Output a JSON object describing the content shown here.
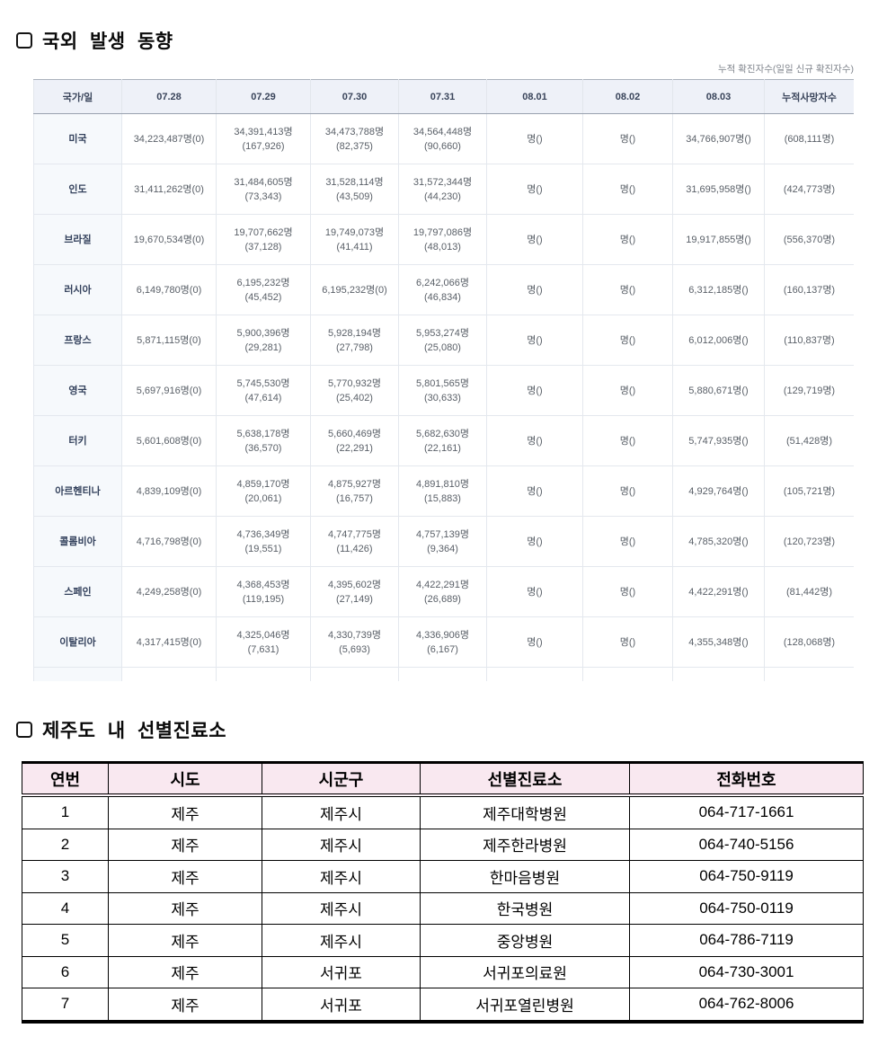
{
  "section1": {
    "title": "국외 발생 동향",
    "note": "누적 확진자수(일일 신규 확진자수)",
    "table": {
      "headers": [
        "국가/일",
        "07.28",
        "07.29",
        "07.30",
        "07.31",
        "08.01",
        "08.02",
        "08.03",
        "누적사망자수"
      ],
      "rows": [
        {
          "country": "미국",
          "cells": [
            [
              "34,223,487명(0)"
            ],
            [
              "34,391,413명",
              "(167,926)"
            ],
            [
              "34,473,788명",
              "(82,375)"
            ],
            [
              "34,564,448명",
              "(90,660)"
            ],
            [
              "명()"
            ],
            [
              "명()"
            ],
            [
              "34,766,907명()"
            ],
            [
              "(608,111명)"
            ]
          ]
        },
        {
          "country": "인도",
          "cells": [
            [
              "31,411,262명(0)"
            ],
            [
              "31,484,605명",
              "(73,343)"
            ],
            [
              "31,528,114명",
              "(43,509)"
            ],
            [
              "31,572,344명",
              "(44,230)"
            ],
            [
              "명()"
            ],
            [
              "명()"
            ],
            [
              "31,695,958명()"
            ],
            [
              "(424,773명)"
            ]
          ]
        },
        {
          "country": "브라질",
          "cells": [
            [
              "19,670,534명(0)"
            ],
            [
              "19,707,662명",
              "(37,128)"
            ],
            [
              "19,749,073명",
              "(41,411)"
            ],
            [
              "19,797,086명",
              "(48,013)"
            ],
            [
              "명()"
            ],
            [
              "명()"
            ],
            [
              "19,917,855명()"
            ],
            [
              "(556,370명)"
            ]
          ]
        },
        {
          "country": "러시아",
          "cells": [
            [
              "6,149,780명(0)"
            ],
            [
              "6,195,232명",
              "(45,452)"
            ],
            [
              "6,195,232명(0)"
            ],
            [
              "6,242,066명",
              "(46,834)"
            ],
            [
              "명()"
            ],
            [
              "명()"
            ],
            [
              "6,312,185명()"
            ],
            [
              "(160,137명)"
            ]
          ]
        },
        {
          "country": "프랑스",
          "cells": [
            [
              "5,871,115명(0)"
            ],
            [
              "5,900,396명",
              "(29,281)"
            ],
            [
              "5,928,194명",
              "(27,798)"
            ],
            [
              "5,953,274명",
              "(25,080)"
            ],
            [
              "명()"
            ],
            [
              "명()"
            ],
            [
              "6,012,006명()"
            ],
            [
              "(110,837명)"
            ]
          ]
        },
        {
          "country": "영국",
          "cells": [
            [
              "5,697,916명(0)"
            ],
            [
              "5,745,530명",
              "(47,614)"
            ],
            [
              "5,770,932명",
              "(25,402)"
            ],
            [
              "5,801,565명",
              "(30,633)"
            ],
            [
              "명()"
            ],
            [
              "명()"
            ],
            [
              "5,880,671명()"
            ],
            [
              "(129,719명)"
            ]
          ]
        },
        {
          "country": "터키",
          "cells": [
            [
              "5,601,608명(0)"
            ],
            [
              "5,638,178명",
              "(36,570)"
            ],
            [
              "5,660,469명",
              "(22,291)"
            ],
            [
              "5,682,630명",
              "(22,161)"
            ],
            [
              "명()"
            ],
            [
              "명()"
            ],
            [
              "5,747,935명()"
            ],
            [
              "(51,428명)"
            ]
          ]
        },
        {
          "country": "아르헨티나",
          "cells": [
            [
              "4,839,109명(0)"
            ],
            [
              "4,859,170명",
              "(20,061)"
            ],
            [
              "4,875,927명",
              "(16,757)"
            ],
            [
              "4,891,810명",
              "(15,883)"
            ],
            [
              "명()"
            ],
            [
              "명()"
            ],
            [
              "4,929,764명()"
            ],
            [
              "(105,721명)"
            ]
          ]
        },
        {
          "country": "콜롬비아",
          "cells": [
            [
              "4,716,798명(0)"
            ],
            [
              "4,736,349명",
              "(19,551)"
            ],
            [
              "4,747,775명",
              "(11,426)"
            ],
            [
              "4,757,139명",
              "(9,364)"
            ],
            [
              "명()"
            ],
            [
              "명()"
            ],
            [
              "4,785,320명()"
            ],
            [
              "(120,723명)"
            ]
          ]
        },
        {
          "country": "스페인",
          "cells": [
            [
              "4,249,258명(0)"
            ],
            [
              "4,368,453명",
              "(119,195)"
            ],
            [
              "4,395,602명",
              "(27,149)"
            ],
            [
              "4,422,291명",
              "(26,689)"
            ],
            [
              "명()"
            ],
            [
              "명()"
            ],
            [
              "4,422,291명()"
            ],
            [
              "(81,442명)"
            ]
          ]
        },
        {
          "country": "이탈리아",
          "cells": [
            [
              "4,317,415명(0)"
            ],
            [
              "4,325,046명",
              "(7,631)"
            ],
            [
              "4,330,739명",
              "(5,693)"
            ],
            [
              "4,336,906명",
              "(6,167)"
            ],
            [
              "명()"
            ],
            [
              "명()"
            ],
            [
              "4,355,348명()"
            ],
            [
              "(128,068명)"
            ]
          ]
        }
      ]
    }
  },
  "section2": {
    "title": "제주도 내 선별진료소",
    "table": {
      "headers": [
        "연번",
        "시도",
        "시군구",
        "선별진료소",
        "전화번호"
      ],
      "rows": [
        [
          "1",
          "제주",
          "제주시",
          "제주대학병원",
          "064-717-1661"
        ],
        [
          "2",
          "제주",
          "제주시",
          "제주한라병원",
          "064-740-5156"
        ],
        [
          "3",
          "제주",
          "제주시",
          "한마음병원",
          "064-750-9119"
        ],
        [
          "4",
          "제주",
          "제주시",
          "한국병원",
          "064-750-0119"
        ],
        [
          "5",
          "제주",
          "제주시",
          "중앙병원",
          "064-786-7119"
        ],
        [
          "6",
          "제주",
          "서귀포",
          "서귀포의료원",
          "064-730-3001"
        ],
        [
          "7",
          "제주",
          "서귀포",
          "서귀포열린병원",
          "064-762-8006"
        ]
      ]
    }
  },
  "colors": {
    "t1_header_bg": "#eef1f8",
    "t1_country_bg": "#f6f9fc",
    "t1_text": "#5a6068",
    "t2_header_bg": "#f9e8f0",
    "border_dark": "#000000"
  }
}
